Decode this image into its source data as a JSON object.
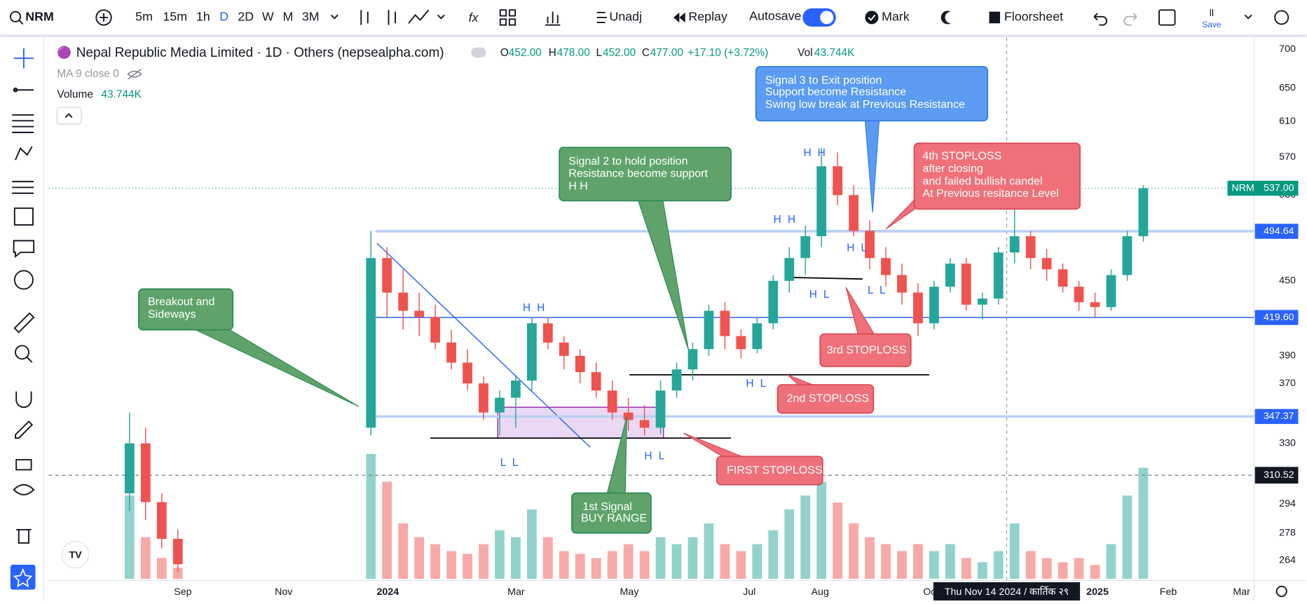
{
  "toolbar": {
    "symbol": "NRM",
    "intervals": [
      "5m",
      "15m",
      "1h",
      "D",
      "2D",
      "W",
      "M",
      "3M"
    ],
    "unadj": "Unadj",
    "replay": "Replay",
    "autosave": "Autosave",
    "mark": "Mark",
    "floorsheet": "Floorsheet",
    "save_icon": "ll",
    "save": "Save"
  },
  "legend": {
    "title": "Nepal Republic Media Limited · 1D · Others (nepsealpha.com)",
    "ohlc": [
      {
        "k": "O",
        "v": "452.00"
      },
      {
        "k": "H",
        "v": "478.00"
      },
      {
        "k": "L",
        "v": "452.00"
      },
      {
        "k": "C",
        "v": "477.00"
      }
    ],
    "change": "+17.10 (+3.72%)",
    "vol_label": "Vol",
    "vol": "43.744K",
    "ma": "MA 9 close 0",
    "volume_label": "Volume",
    "volume_value": "43.744K"
  },
  "chart_data": {
    "type": "candlestick",
    "log_scale": true,
    "ylim": [
      716,
      254
    ],
    "yticks": [
      700,
      650,
      610,
      570,
      530,
      490,
      450,
      390,
      370,
      330,
      294,
      278,
      264
    ],
    "up_color": "#26a69a",
    "down_color": "#ef5350",
    "candles": [
      [
        300,
        350,
        290,
        330
      ],
      [
        330,
        340,
        285,
        295
      ],
      [
        295,
        300,
        270,
        275
      ],
      [
        275,
        280,
        258,
        262
      ],
      null,
      null,
      null,
      null,
      null,
      null,
      null,
      null,
      null,
      null,
      null,
      [
        340,
        495,
        335,
        470
      ],
      [
        470,
        480,
        420,
        440
      ],
      [
        440,
        460,
        410,
        425
      ],
      [
        425,
        440,
        405,
        420
      ],
      [
        420,
        430,
        395,
        400
      ],
      [
        400,
        410,
        380,
        385
      ],
      [
        385,
        395,
        365,
        370
      ],
      [
        370,
        375,
        345,
        350
      ],
      [
        350,
        365,
        335,
        360
      ],
      [
        360,
        375,
        340,
        372
      ],
      [
        372,
        420,
        365,
        415
      ],
      [
        415,
        420,
        395,
        400
      ],
      [
        400,
        405,
        380,
        390
      ],
      [
        390,
        395,
        370,
        378
      ],
      [
        378,
        385,
        360,
        365
      ],
      [
        365,
        372,
        345,
        350
      ],
      [
        350,
        360,
        338,
        345
      ],
      [
        345,
        355,
        335,
        340
      ],
      [
        340,
        372,
        336,
        365
      ],
      [
        365,
        385,
        360,
        380
      ],
      [
        380,
        400,
        372,
        395
      ],
      [
        395,
        430,
        390,
        425
      ],
      [
        425,
        432,
        395,
        405
      ],
      [
        405,
        410,
        388,
        395
      ],
      [
        395,
        420,
        392,
        415
      ],
      [
        415,
        455,
        410,
        450
      ],
      [
        450,
        480,
        440,
        470
      ],
      [
        470,
        500,
        455,
        490
      ],
      [
        490,
        580,
        480,
        560
      ],
      [
        560,
        575,
        520,
        530
      ],
      [
        530,
        540,
        490,
        495
      ],
      [
        495,
        505,
        460,
        470
      ],
      [
        470,
        480,
        445,
        455
      ],
      [
        455,
        465,
        430,
        440
      ],
      [
        440,
        448,
        405,
        415
      ],
      [
        415,
        450,
        410,
        445
      ],
      [
        445,
        470,
        440,
        465
      ],
      [
        465,
        470,
        425,
        430
      ],
      [
        430,
        440,
        418,
        435
      ],
      [
        435,
        480,
        430,
        475
      ],
      [
        475,
        520,
        465,
        490
      ],
      [
        490,
        495,
        460,
        470
      ],
      [
        470,
        478,
        450,
        460
      ],
      [
        460,
        465,
        440,
        445
      ],
      [
        445,
        450,
        425,
        432
      ],
      [
        432,
        440,
        420,
        428
      ],
      [
        428,
        460,
        425,
        455
      ],
      [
        455,
        495,
        450,
        490
      ],
      [
        490,
        540,
        485,
        537
      ]
    ],
    "volumes": [
      60,
      30,
      15,
      8,
      null,
      null,
      null,
      null,
      null,
      null,
      null,
      null,
      null,
      null,
      null,
      90,
      70,
      40,
      30,
      25,
      20,
      18,
      25,
      35,
      30,
      50,
      30,
      20,
      18,
      15,
      20,
      25,
      20,
      30,
      25,
      30,
      40,
      25,
      20,
      25,
      35,
      50,
      60,
      70,
      55,
      40,
      30,
      25,
      20,
      25,
      20,
      25,
      15,
      12,
      20,
      40,
      20,
      15,
      12,
      15,
      10,
      25,
      60,
      80
    ],
    "price_lines": [
      {
        "value": 494.64,
        "label": "494.64",
        "color": "#2962ff"
      },
      {
        "value": 419.6,
        "label": "419.60",
        "color": "#2962ff"
      },
      {
        "value": 347.37,
        "label": "347.37",
        "color": "#2962ff"
      }
    ],
    "crosshair_price": {
      "value": 310.52,
      "label": "310.52"
    },
    "last_price": {
      "symbol": "NRM",
      "value": 537,
      "label": "537.00"
    },
    "x_labels": [
      "Sep",
      "Nov",
      "2024",
      "Mar",
      "May",
      "Jul",
      "Aug",
      "Oct",
      "2025",
      "Feb",
      "Mar"
    ],
    "crosshair_date": "Thu Nov 14 2024 / कार्तिक २९",
    "annotations": [
      [
        "Breakout and",
        "Sideways"
      ],
      [
        "Signal 2 to hold position",
        "Resistance become support",
        "H H"
      ],
      [
        "Signal 3 to Exit position",
        "Support become Resistance",
        "Swing low break at Previous Resistance"
      ],
      [
        "4th  STOPLOSS",
        "after closing",
        "and failed bullish candel",
        "At Previous resitance Level"
      ],
      [
        "3rd STOPLOSS"
      ],
      [
        "2nd STOPLOSS"
      ],
      [
        "FIRST STOPLOSS"
      ],
      [
        "1st Signal",
        "BUY RANGE"
      ]
    ],
    "swing_labels": [
      "H H",
      "H H",
      "H H",
      "H L",
      "H L",
      "H L",
      "H L",
      "L L",
      "L L"
    ]
  }
}
